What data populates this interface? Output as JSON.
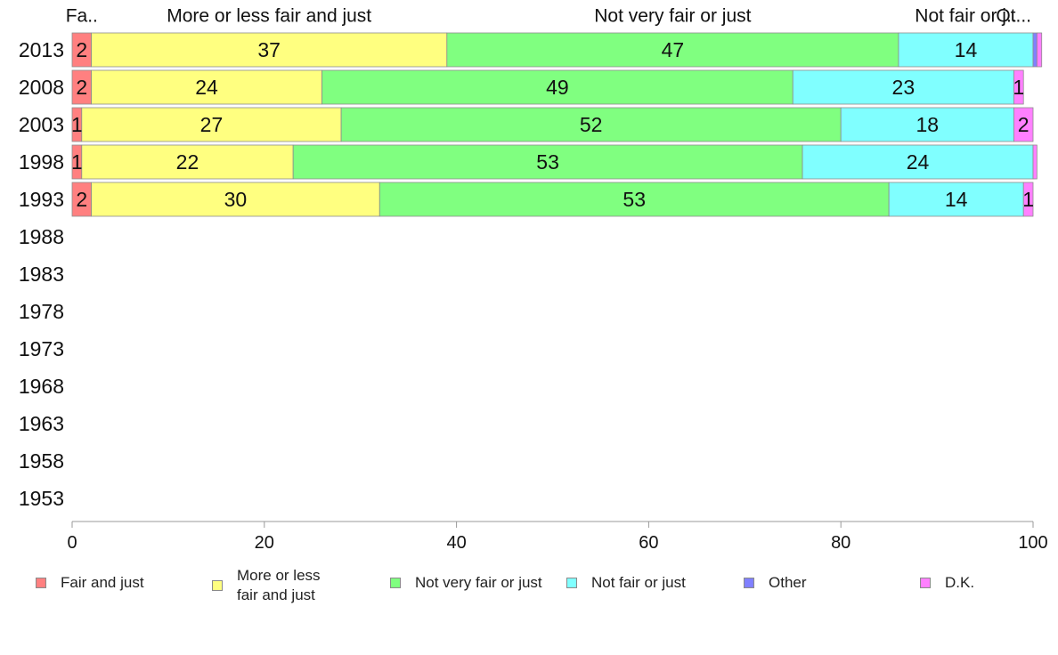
{
  "chart_data": {
    "type": "bar",
    "orientation": "horizontal",
    "stacked": true,
    "categories": [
      "2013",
      "2008",
      "2003",
      "1998",
      "1993",
      "1988",
      "1983",
      "1978",
      "1973",
      "1968",
      "1963",
      "1958",
      "1953"
    ],
    "series": [
      {
        "name": "Fair and just",
        "color": "#ff8080",
        "values": [
          2,
          2,
          1,
          1,
          2,
          null,
          null,
          null,
          null,
          null,
          null,
          null,
          null
        ]
      },
      {
        "name": "More or less fair and just",
        "color": "#ffff80",
        "values": [
          37,
          24,
          27,
          22,
          30,
          null,
          null,
          null,
          null,
          null,
          null,
          null,
          null
        ]
      },
      {
        "name": "Not very fair or just",
        "color": "#80ff80",
        "values": [
          47,
          49,
          52,
          53,
          53,
          null,
          null,
          null,
          null,
          null,
          null,
          null,
          null
        ]
      },
      {
        "name": "Not fair or just",
        "color": "#80ffff",
        "values": [
          14,
          23,
          18,
          24,
          14,
          null,
          null,
          null,
          null,
          null,
          null,
          null,
          null
        ]
      },
      {
        "name": "Other",
        "color": "#8080ff",
        "values": [
          0.4,
          0,
          0,
          0,
          0,
          null,
          null,
          null,
          null,
          null,
          null,
          null,
          null
        ]
      },
      {
        "name": "D.K.",
        "color": "#ff80ff",
        "values": [
          0.5,
          1,
          2,
          0.4,
          1,
          null,
          null,
          null,
          null,
          null,
          null,
          null,
          null
        ]
      }
    ],
    "top_labels": [
      "Fa..",
      "More or less fair and just",
      "Not very fair or just",
      "Not fair or j..",
      "Ot..."
    ],
    "xlim": [
      0,
      100
    ],
    "xticks": [
      0,
      20,
      40,
      60,
      80,
      100
    ],
    "grid": false,
    "legend_position": "bottom"
  },
  "legend": [
    {
      "label": "Fair and just",
      "color": "#ff8080"
    },
    {
      "label": "More or less\nfair and just",
      "color": "#ffff80"
    },
    {
      "label": "Not very fair or just",
      "color": "#80ff80"
    },
    {
      "label": "Not fair or just",
      "color": "#80ffff"
    },
    {
      "label": "Other",
      "color": "#8080ff"
    },
    {
      "label": "D.K.",
      "color": "#ff80ff"
    }
  ]
}
